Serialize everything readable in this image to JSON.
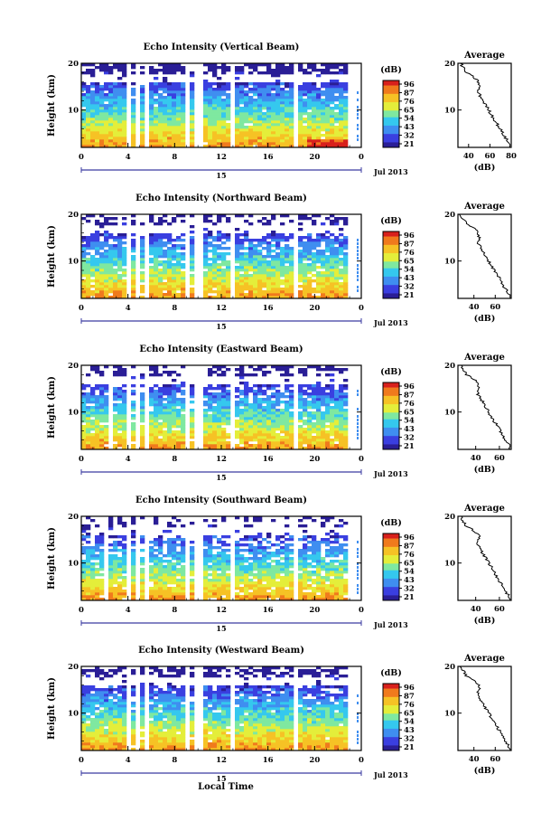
{
  "xlabel": "Local Time",
  "colorbar": {
    "unit": "(dB)",
    "ticks": [
      "96",
      "87",
      "76",
      "65",
      "54",
      "43",
      "32",
      "21"
    ]
  },
  "profile": {
    "title": "Average",
    "xlabel": "(dB)"
  },
  "date_axis": {
    "day": "15",
    "date": "Jul 2013"
  },
  "colors": {
    "cmap": [
      "#2a1e96",
      "#3a3fe0",
      "#3f8ef0",
      "#35c8ee",
      "#7fe8a0",
      "#e4ee3a",
      "#f6c225",
      "#f07a1d",
      "#d8201c"
    ]
  },
  "chart_data": [
    {
      "type": "heatmap",
      "title": "Echo Intensity (Vertical Beam)",
      "ylabel": "Height (km)",
      "x": {
        "range": [
          0,
          24
        ],
        "ticks": [
          "0",
          "4",
          "8",
          "12",
          "16",
          "20",
          "0"
        ],
        "unit": "hour"
      },
      "y": {
        "range": [
          2,
          20
        ],
        "ticks": [
          "10",
          "20"
        ]
      },
      "color_range": [
        21,
        96
      ],
      "data_gaps_hours": [
        [
          3.7,
          4.1
        ],
        [
          4.6,
          4.9
        ],
        [
          5.4,
          5.8
        ],
        [
          8.8,
          9.1
        ],
        [
          9.6,
          10.1
        ],
        [
          12.5,
          12.9
        ],
        [
          18.0,
          18.3
        ]
      ],
      "profile": {
        "x_ticks": [
          "40",
          "60",
          "80"
        ],
        "x_range": [
          30,
          80
        ],
        "y_ticks": [
          "10",
          "20"
        ],
        "y_range": [
          2,
          20
        ]
      }
    },
    {
      "type": "heatmap",
      "title": "Echo Intensity (Northward Beam)",
      "ylabel": "Height (km)",
      "x": {
        "range": [
          0,
          24
        ],
        "ticks": [
          "0",
          "4",
          "8",
          "12",
          "16",
          "20",
          "0"
        ],
        "unit": "hour"
      },
      "y": {
        "range": [
          2,
          20
        ],
        "ticks": [
          "10",
          "20"
        ]
      },
      "color_range": [
        21,
        96
      ],
      "data_gaps_hours": [
        [
          3.7,
          4.1
        ],
        [
          4.6,
          4.9
        ],
        [
          5.4,
          5.8
        ],
        [
          8.8,
          9.1
        ],
        [
          9.6,
          10.1
        ],
        [
          12.5,
          12.9
        ],
        [
          18.0,
          18.3
        ]
      ],
      "profile": {
        "x_ticks": [
          "40",
          "60"
        ],
        "x_range": [
          25,
          75
        ],
        "y_ticks": [
          "10",
          "20"
        ],
        "y_range": [
          2,
          20
        ]
      }
    },
    {
      "type": "heatmap",
      "title": "Echo Intensity (Eastward Beam)",
      "ylabel": "Height (km)",
      "x": {
        "range": [
          0,
          24
        ],
        "ticks": [
          "0",
          "4",
          "8",
          "12",
          "16",
          "20",
          "0"
        ],
        "unit": "hour"
      },
      "y": {
        "range": [
          2,
          20
        ],
        "ticks": [
          "10",
          "20"
        ]
      },
      "color_range": [
        21,
        96
      ],
      "data_gaps_hours": [
        [
          2.2,
          2.5
        ],
        [
          3.7,
          4.1
        ],
        [
          4.6,
          4.9
        ],
        [
          5.4,
          5.8
        ],
        [
          8.8,
          9.1
        ],
        [
          9.6,
          10.1
        ],
        [
          12.5,
          12.9
        ],
        [
          18.0,
          18.3
        ]
      ],
      "profile": {
        "x_ticks": [
          "40",
          "60"
        ],
        "x_range": [
          25,
          70
        ],
        "y_ticks": [
          "10",
          "20"
        ],
        "y_range": [
          2,
          20
        ]
      }
    },
    {
      "type": "heatmap",
      "title": "Echo Intensity (Southward Beam)",
      "ylabel": "Height (km)",
      "x": {
        "range": [
          0,
          24
        ],
        "ticks": [
          "0",
          "4",
          "8",
          "12",
          "16",
          "20",
          "0"
        ],
        "unit": "hour"
      },
      "y": {
        "range": [
          2,
          20
        ],
        "ticks": [
          "10",
          "20"
        ]
      },
      "color_range": [
        21,
        96
      ],
      "data_gaps_hours": [
        [
          1.6,
          2.0
        ],
        [
          3.7,
          4.1
        ],
        [
          4.6,
          4.9
        ],
        [
          5.4,
          5.8
        ],
        [
          8.8,
          9.1
        ],
        [
          9.6,
          10.1
        ],
        [
          12.5,
          12.9
        ],
        [
          18.0,
          18.3
        ]
      ],
      "profile": {
        "x_ticks": [
          "40",
          "60"
        ],
        "x_range": [
          25,
          70
        ],
        "y_ticks": [
          "10",
          "20"
        ],
        "y_range": [
          2,
          20
        ]
      }
    },
    {
      "type": "heatmap",
      "title": "Echo Intensity (Westward Beam)",
      "ylabel": "Height (km)",
      "x": {
        "range": [
          0,
          24
        ],
        "ticks": [
          "0",
          "4",
          "8",
          "12",
          "16",
          "20",
          "0"
        ],
        "unit": "hour"
      },
      "y": {
        "range": [
          2,
          20
        ],
        "ticks": [
          "10",
          "20"
        ]
      },
      "color_range": [
        21,
        96
      ],
      "data_gaps_hours": [
        [
          3.7,
          4.1
        ],
        [
          4.6,
          4.9
        ],
        [
          5.4,
          5.8
        ],
        [
          8.8,
          9.1
        ],
        [
          9.6,
          10.1
        ],
        [
          12.5,
          12.9
        ],
        [
          18.0,
          18.3
        ]
      ],
      "profile": {
        "x_ticks": [
          "40",
          "60"
        ],
        "x_range": [
          25,
          75
        ],
        "y_ticks": [
          "10",
          "20"
        ],
        "y_range": [
          2,
          20
        ]
      }
    }
  ]
}
